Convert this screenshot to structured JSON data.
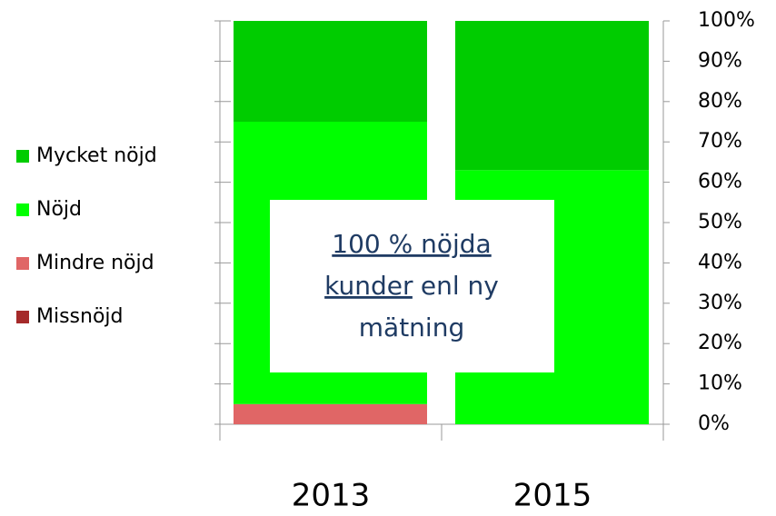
{
  "chart_data": {
    "type": "stacked_bar",
    "categories": [
      "2013",
      "2015"
    ],
    "series": [
      {
        "name": "Missnöjd",
        "color": "#a52a2a",
        "values": [
          0,
          0
        ]
      },
      {
        "name": "Mindre nöjd",
        "color": "#e06666",
        "values": [
          5,
          0
        ]
      },
      {
        "name": "Nöjd",
        "color": "#00ff00",
        "values": [
          70,
          63
        ]
      },
      {
        "name": "Mycket nöjd",
        "color": "#00cc00",
        "values": [
          25,
          37
        ]
      }
    ],
    "ylim": [
      0,
      100
    ],
    "yticks": [
      {
        "value": 0,
        "label": "0%"
      },
      {
        "value": 10,
        "label": "10%"
      },
      {
        "value": 20,
        "label": "20%"
      },
      {
        "value": 30,
        "label": "30%"
      },
      {
        "value": 40,
        "label": "40%"
      },
      {
        "value": 50,
        "label": "50%"
      },
      {
        "value": 60,
        "label": "60%"
      },
      {
        "value": 70,
        "label": "70%"
      },
      {
        "value": 80,
        "label": "80%"
      },
      {
        "value": 90,
        "label": "90%"
      },
      {
        "value": 100,
        "label": "100%"
      }
    ],
    "legend": "left",
    "annotation": [
      [
        {
          "text": "100 % nöjda",
          "link": true
        }
      ],
      [
        {
          "text": "kunder",
          "link": true
        },
        {
          "text": "enl ny"
        }
      ],
      [
        {
          "text": "mätning"
        }
      ]
    ]
  }
}
